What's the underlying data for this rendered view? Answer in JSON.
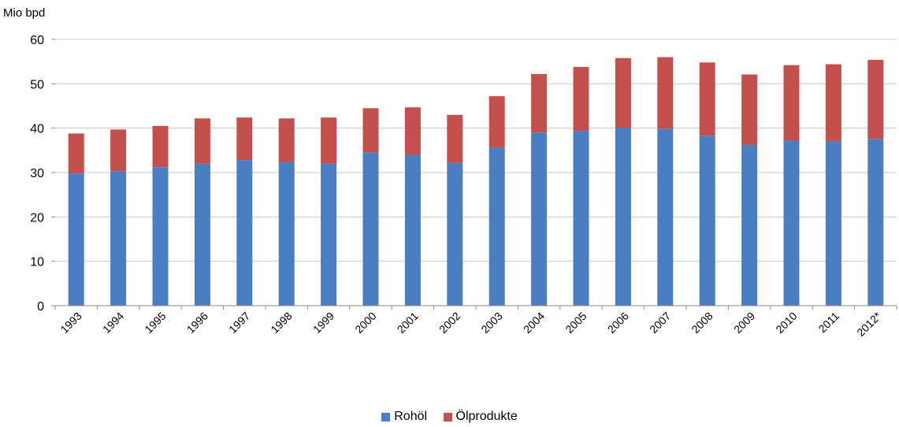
{
  "chart_data": {
    "type": "bar",
    "stacked": true,
    "ylabel": "Mio bpd",
    "ylim": [
      0,
      60
    ],
    "yticks": [
      0,
      10,
      20,
      30,
      40,
      50,
      60
    ],
    "grid": true,
    "legend_position": "bottom",
    "categories": [
      "1993",
      "1994",
      "1995",
      "1996",
      "1997",
      "1998",
      "1999",
      "2000",
      "2001",
      "2002",
      "2003",
      "2004",
      "2005",
      "2006",
      "2007",
      "2008",
      "2009",
      "2010",
      "2011",
      "2012*"
    ],
    "series": [
      {
        "name": "Rohöl",
        "color": "#4a7ec2",
        "values": [
          29.8,
          30.3,
          31.2,
          32.0,
          32.8,
          32.4,
          32.0,
          34.5,
          34.0,
          32.2,
          35.6,
          39.0,
          39.4,
          40.0,
          39.8,
          38.3,
          36.2,
          37.2,
          37.0,
          37.6
        ]
      },
      {
        "name": "Ölprodukte",
        "color": "#c4504e",
        "values": [
          9.0,
          9.4,
          9.3,
          10.2,
          9.6,
          9.8,
          10.4,
          10.0,
          10.7,
          10.8,
          11.6,
          13.2,
          14.4,
          15.8,
          16.2,
          16.5,
          15.9,
          17.0,
          17.4,
          17.8
        ]
      }
    ]
  }
}
